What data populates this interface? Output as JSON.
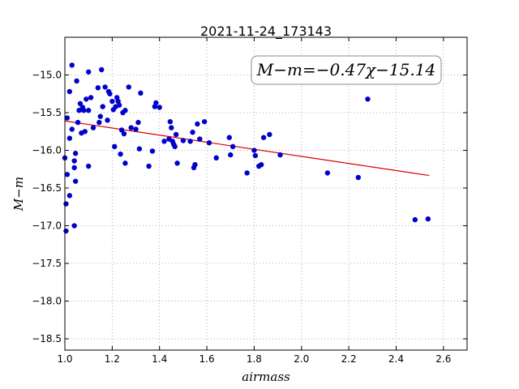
{
  "chart_data": {
    "type": "scatter",
    "title": "2021-11-24_173143",
    "xlabel": "airmass",
    "ylabel": "M−m",
    "xlim": [
      1.0,
      2.7
    ],
    "ylim": [
      -18.65,
      -14.5
    ],
    "x_ticks": [
      1.0,
      1.2,
      1.4,
      1.6,
      1.8,
      2.0,
      2.2,
      2.4,
      2.6
    ],
    "x_tick_labels": [
      "1.0",
      "1.2",
      "1.4",
      "1.6",
      "1.8",
      "2.0",
      "2.2",
      "2.4",
      "2.6"
    ],
    "y_ticks": [
      -15.0,
      -15.5,
      -16.0,
      -16.5,
      -17.0,
      -17.5,
      -18.0,
      -18.5
    ],
    "y_tick_labels": [
      "−15.0",
      "−15.5",
      "−16.0",
      "−16.5",
      "−17.0",
      "−17.5",
      "−18.0",
      "−18.5"
    ],
    "grid": true,
    "annotation": "M−m=−0.47χ−15.14",
    "colors": {
      "points": "#0000cc",
      "fit": "#dd0000",
      "grid": "#999999"
    },
    "fit": {
      "slope": -0.47,
      "intercept": -15.14,
      "x_range": [
        1.0,
        2.54
      ]
    },
    "points": [
      [
        1.0,
        -16.1
      ],
      [
        1.005,
        -16.71
      ],
      [
        1.005,
        -17.07
      ],
      [
        1.01,
        -15.57
      ],
      [
        1.01,
        -16.32
      ],
      [
        1.02,
        -15.84
      ],
      [
        1.02,
        -16.6
      ],
      [
        1.02,
        -15.22
      ],
      [
        1.03,
        -14.87
      ],
      [
        1.03,
        -15.72
      ],
      [
        1.04,
        -16.14
      ],
      [
        1.04,
        -16.23
      ],
      [
        1.04,
        -17.0
      ],
      [
        1.05,
        -15.08
      ],
      [
        1.045,
        -16.04
      ],
      [
        1.045,
        -16.41
      ],
      [
        1.055,
        -15.63
      ],
      [
        1.06,
        -15.47
      ],
      [
        1.065,
        -15.38
      ],
      [
        1.07,
        -15.77
      ],
      [
        1.075,
        -15.43
      ],
      [
        1.08,
        -15.47
      ],
      [
        1.085,
        -15.75
      ],
      [
        1.09,
        -15.32
      ],
      [
        1.1,
        -14.96
      ],
      [
        1.1,
        -15.47
      ],
      [
        1.1,
        -16.21
      ],
      [
        1.11,
        -15.3
      ],
      [
        1.12,
        -15.7
      ],
      [
        1.14,
        -15.17
      ],
      [
        1.145,
        -15.63
      ],
      [
        1.15,
        -15.55
      ],
      [
        1.155,
        -14.93
      ],
      [
        1.16,
        -15.42
      ],
      [
        1.17,
        -15.16
      ],
      [
        1.18,
        -15.6
      ],
      [
        1.185,
        -15.22
      ],
      [
        1.19,
        -15.25
      ],
      [
        1.2,
        -15.35
      ],
      [
        1.205,
        -15.46
      ],
      [
        1.21,
        -15.95
      ],
      [
        1.215,
        -15.42
      ],
      [
        1.22,
        -15.3
      ],
      [
        1.225,
        -15.35
      ],
      [
        1.23,
        -15.4
      ],
      [
        1.235,
        -16.05
      ],
      [
        1.24,
        -15.73
      ],
      [
        1.245,
        -15.5
      ],
      [
        1.25,
        -15.78
      ],
      [
        1.255,
        -15.47
      ],
      [
        1.255,
        -16.17
      ],
      [
        1.27,
        -15.16
      ],
      [
        1.28,
        -15.7
      ],
      [
        1.3,
        -15.72
      ],
      [
        1.31,
        -15.63
      ],
      [
        1.315,
        -15.98
      ],
      [
        1.32,
        -15.24
      ],
      [
        1.355,
        -16.21
      ],
      [
        1.37,
        -16.01
      ],
      [
        1.38,
        -15.42
      ],
      [
        1.385,
        -15.37
      ],
      [
        1.4,
        -15.43
      ],
      [
        1.42,
        -15.88
      ],
      [
        1.44,
        -15.85
      ],
      [
        1.445,
        -15.62
      ],
      [
        1.45,
        -15.7
      ],
      [
        1.455,
        -15.88
      ],
      [
        1.46,
        -15.92
      ],
      [
        1.465,
        -15.95
      ],
      [
        1.47,
        -15.79
      ],
      [
        1.475,
        -16.17
      ],
      [
        1.5,
        -15.87
      ],
      [
        1.53,
        -15.88
      ],
      [
        1.54,
        -15.76
      ],
      [
        1.545,
        -16.23
      ],
      [
        1.55,
        -16.19
      ],
      [
        1.56,
        -15.65
      ],
      [
        1.57,
        -15.85
      ],
      [
        1.59,
        -15.62
      ],
      [
        1.61,
        -15.9
      ],
      [
        1.64,
        -16.1
      ],
      [
        1.695,
        -15.83
      ],
      [
        1.7,
        -16.06
      ],
      [
        1.71,
        -15.95
      ],
      [
        1.77,
        -16.3
      ],
      [
        1.8,
        -16.0
      ],
      [
        1.805,
        -16.07
      ],
      [
        1.82,
        -16.21
      ],
      [
        1.83,
        -16.19
      ],
      [
        1.84,
        -15.83
      ],
      [
        1.865,
        -15.79
      ],
      [
        1.91,
        -16.06
      ],
      [
        2.11,
        -16.3
      ],
      [
        2.24,
        -16.36
      ],
      [
        2.28,
        -15.32
      ],
      [
        2.48,
        -16.92
      ],
      [
        2.535,
        -16.91
      ]
    ]
  }
}
